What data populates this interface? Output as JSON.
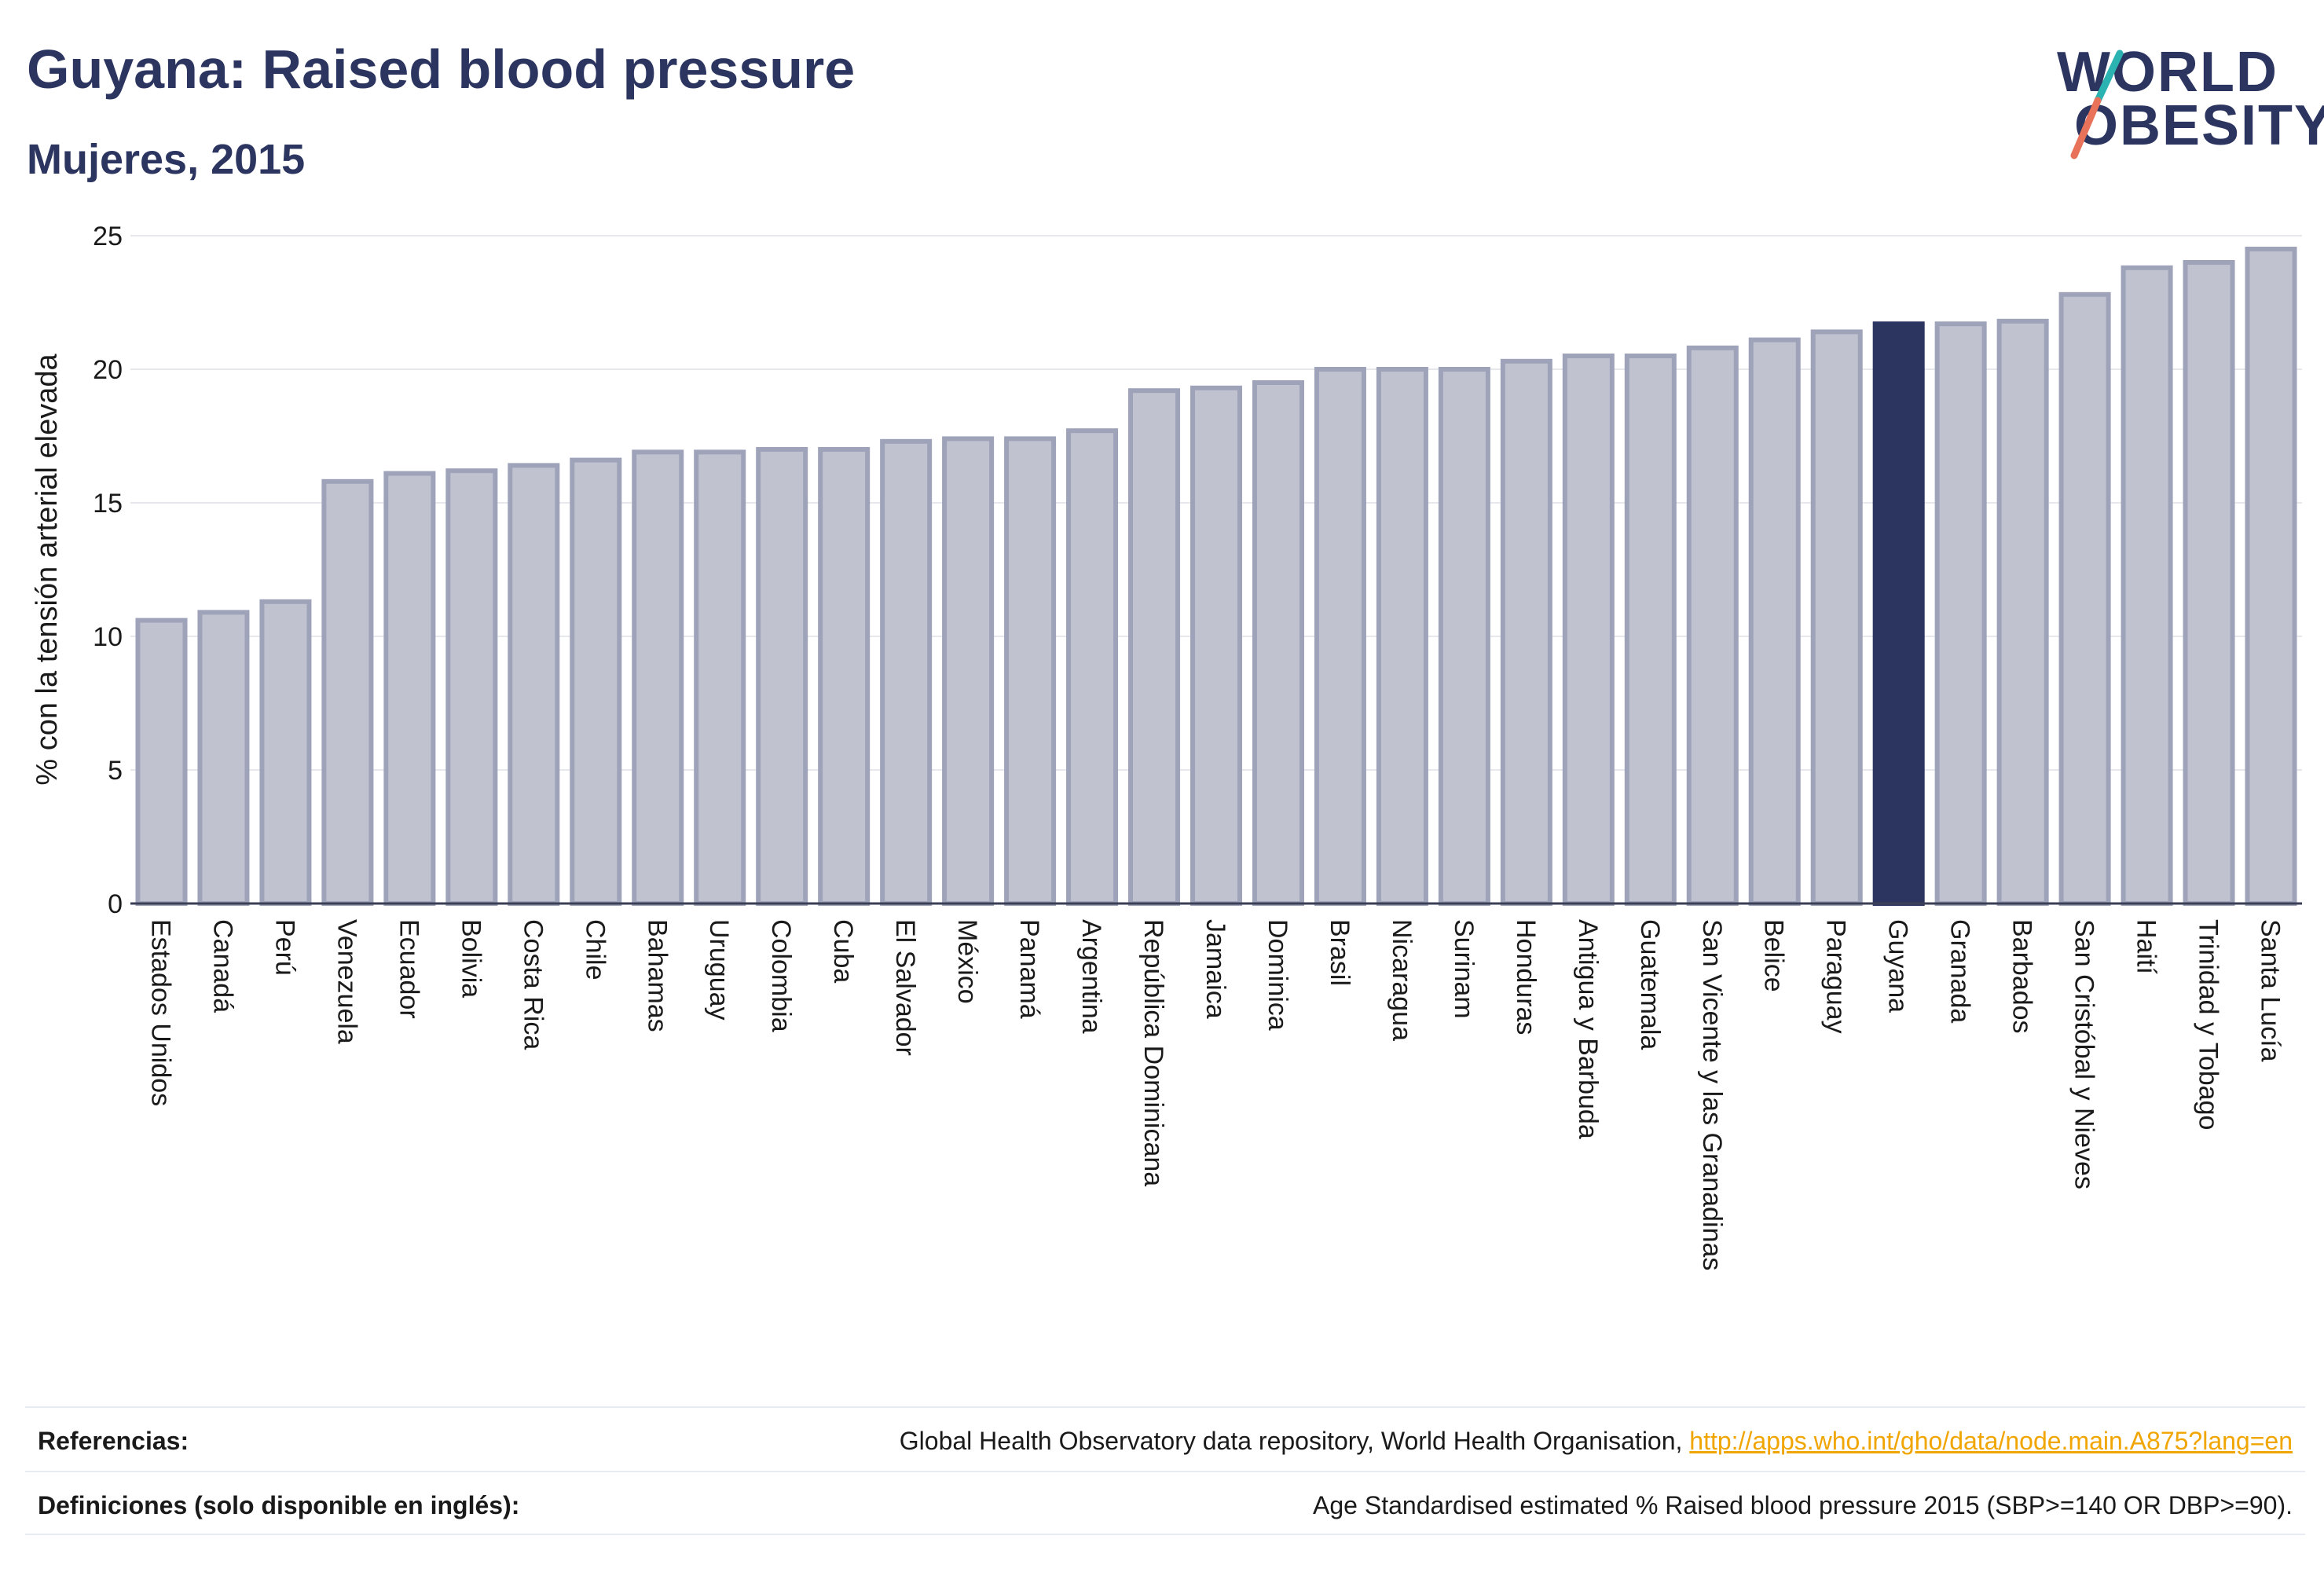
{
  "header": {
    "title": "Guyana: Raised blood pressure",
    "subtitle": "Mujeres, 2015"
  },
  "logo": {
    "line1": "WORLD",
    "line2": "OBESITY",
    "slash_colors": [
      "#2bb3b1",
      "#e8735a"
    ]
  },
  "colors": {
    "bar_fill": "#c0c3cf",
    "bar_stroke": "#9ea3ba",
    "highlight": "#2c3560",
    "grid": "#e6e8ee",
    "axis_text": "#1a1a1a"
  },
  "chart_data": {
    "type": "bar",
    "ylabel": "% con la tensión arterial elevada",
    "ylim": [
      0,
      25
    ],
    "yticks": [
      0,
      5,
      10,
      15,
      20,
      25
    ],
    "grid": true,
    "highlight": "Guyana",
    "categories": [
      "Estados Unidos",
      "Canadá",
      "Perú",
      "Venezuela",
      "Ecuador",
      "Bolivia",
      "Costa Rica",
      "Chile",
      "Bahamas",
      "Uruguay",
      "Colombia",
      "Cuba",
      "El Salvador",
      "México",
      "Panamá",
      "Argentina",
      "República Dominicana",
      "Jamaica",
      "Dominica",
      "Brasil",
      "Nicaragua",
      "Surinam",
      "Honduras",
      "Antigua y Barbuda",
      "Guatemala",
      "San Vicente y las Granadinas",
      "Belice",
      "Paraguay",
      "Guyana",
      "Granada",
      "Barbados",
      "San Cristóbal y Nieves",
      "Haití",
      "Trinidad y Tobago",
      "Santa Lucía"
    ],
    "values": [
      10.6,
      10.9,
      11.3,
      15.8,
      16.1,
      16.2,
      16.4,
      16.6,
      16.9,
      16.9,
      17.0,
      17.0,
      17.3,
      17.4,
      17.4,
      17.7,
      19.2,
      19.3,
      19.5,
      20.0,
      20.0,
      20.0,
      20.3,
      20.5,
      20.5,
      20.8,
      21.1,
      21.4,
      21.7,
      21.7,
      21.8,
      22.8,
      23.8,
      24.0,
      24.5
    ]
  },
  "footer": {
    "ref_label": "Referencias:",
    "ref_text": "Global Health Observatory data repository, World Health Organisation, ",
    "ref_link": "http://apps.who.int/gho/data/node.main.A875?lang=en",
    "def_label": "Definiciones (solo disponible en inglés):",
    "def_text": "Age Standardised estimated % Raised blood pressure 2015 (SBP>=140 OR DBP>=90)."
  }
}
